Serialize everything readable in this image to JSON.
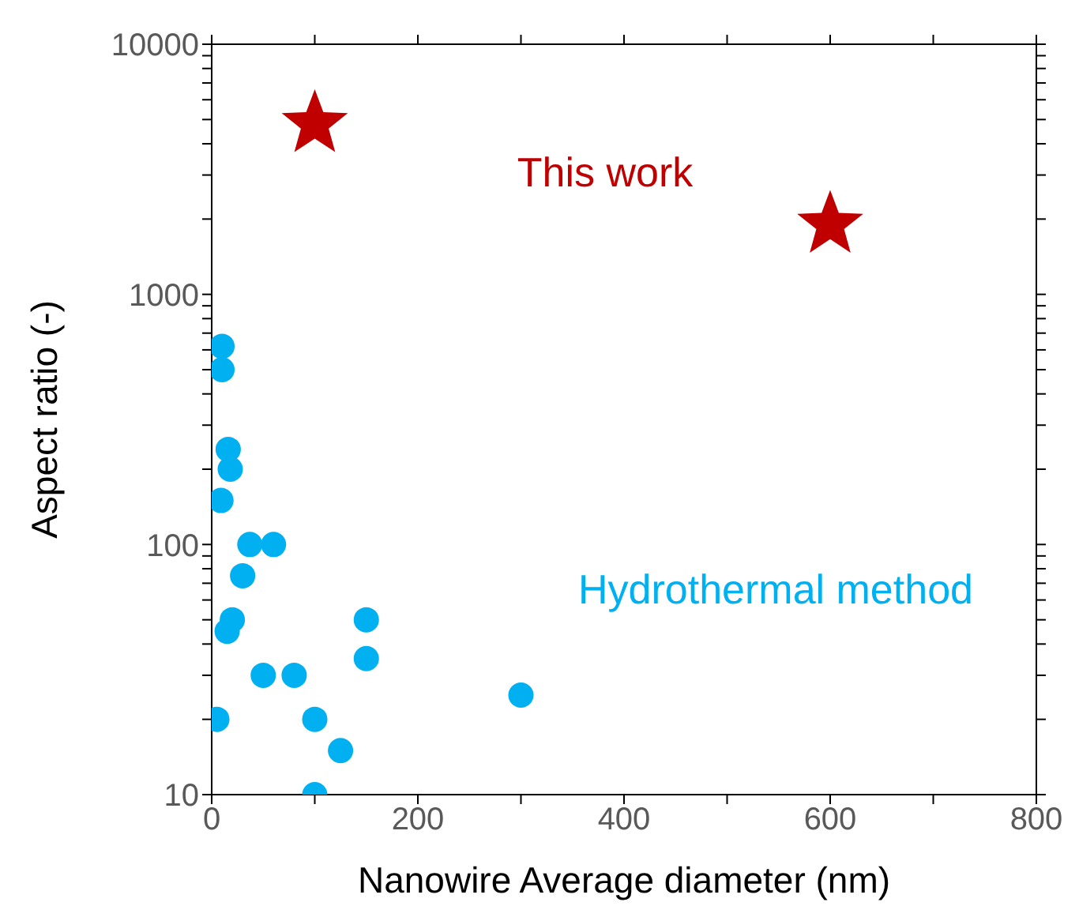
{
  "chart_data": {
    "type": "scatter",
    "xlabel": "Nanowire Average diameter (nm)",
    "ylabel": "Aspect ratio (-)",
    "log": "y",
    "xlim": [
      0,
      800
    ],
    "xticks": [
      0,
      {
        "value": 100,
        "label": null
      },
      200,
      {
        "value": 300,
        "label": null
      },
      400,
      {
        "value": 500,
        "label": null
      },
      600,
      {
        "value": 700,
        "label": null
      },
      800
    ],
    "ylim": [
      10,
      10000
    ],
    "yticks": [
      10,
      {
        "value": 20,
        "label": null
      },
      {
        "value": 30,
        "label": null
      },
      {
        "value": 40,
        "label": null
      },
      {
        "value": 50,
        "label": null
      },
      {
        "value": 60,
        "label": null
      },
      {
        "value": 70,
        "label": null
      },
      {
        "value": 80,
        "label": null
      },
      {
        "value": 90,
        "label": null
      },
      100,
      {
        "value": 200,
        "label": null
      },
      {
        "value": 300,
        "label": null
      },
      {
        "value": 400,
        "label": null
      },
      {
        "value": 500,
        "label": null
      },
      {
        "value": 600,
        "label": null
      },
      {
        "value": 700,
        "label": null
      },
      {
        "value": 800,
        "label": null
      },
      {
        "value": 900,
        "label": null
      },
      1000,
      {
        "value": 2000,
        "label": null
      },
      {
        "value": 3000,
        "label": null
      },
      {
        "value": 4000,
        "label": null
      },
      {
        "value": 5000,
        "label": null
      },
      {
        "value": 6000,
        "label": null
      },
      {
        "value": 7000,
        "label": null
      },
      {
        "value": 8000,
        "label": null
      },
      {
        "value": 9000,
        "label": null
      },
      10000
    ],
    "series": [
      {
        "name": "This work",
        "color": "#c00000",
        "marker": "star",
        "x": [
          100,
          600
        ],
        "values": [
          4800,
          1900
        ]
      },
      {
        "name": "Hydrothermal method",
        "color": "#00b0f0",
        "marker": "circle",
        "x": [
          10,
          10,
          16,
          18,
          9,
          37,
          60,
          30,
          20,
          15,
          150,
          150,
          50,
          80,
          300,
          5,
          100,
          125,
          100
        ],
        "values": [
          620,
          500,
          240,
          200,
          150,
          100,
          100,
          75,
          50,
          45,
          50,
          35,
          30,
          30,
          25,
          20,
          20,
          15,
          10
        ]
      }
    ]
  }
}
